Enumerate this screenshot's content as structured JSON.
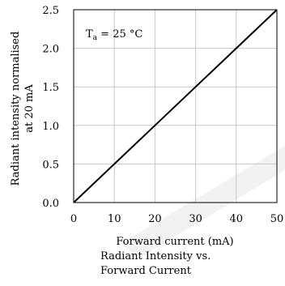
{
  "chart_data": {
    "type": "line",
    "title": "",
    "xlabel": "Forward current (mA)",
    "ylabel_lines": [
      "Radiant intensity normalised",
      "at 20 mA"
    ],
    "caption_lines": [
      "Radiant Intensity vs.",
      "Forward Current"
    ],
    "annotation": {
      "base": "T",
      "subscript": "a",
      "rest": " = 25 °C"
    },
    "xlim": [
      0,
      50
    ],
    "ylim": [
      0,
      2.5
    ],
    "x_ticks": [
      0,
      10,
      20,
      30,
      40,
      50
    ],
    "x_tick_labels": [
      "0",
      "10",
      "20",
      "30",
      "40",
      "50"
    ],
    "y_ticks": [
      0,
      0.5,
      1.0,
      1.5,
      2.0,
      2.5
    ],
    "y_tick_labels": [
      "0.0",
      "0.5",
      "1.0",
      "1.5",
      "2.0",
      "2.5"
    ],
    "grid": true,
    "series": [
      {
        "x": [
          0,
          10,
          20,
          30,
          40,
          50
        ],
        "y": [
          0,
          0.5,
          1.0,
          1.5,
          2.0,
          2.5
        ]
      }
    ],
    "colors": {
      "line": "#000000",
      "grid": "#c8c8c8",
      "frame": "#000000",
      "watermark": "#f2f2f2"
    }
  }
}
